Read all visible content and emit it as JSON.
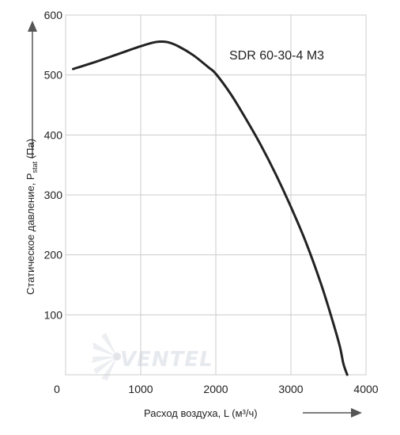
{
  "chart_data": {
    "type": "line",
    "model_label": "SDR 60-30-4 M3",
    "xlabel": "Расход воздуха, L (м³/ч)",
    "ylabel_main": "Статическое давление, P",
    "ylabel_sub": "stat",
    "ylabel_unit": " (Па)",
    "xlim": [
      0,
      4000
    ],
    "ylim": [
      0,
      600
    ],
    "xticks": [
      0,
      1000,
      2000,
      3000,
      4000
    ],
    "yticks": [
      100,
      200,
      300,
      400,
      500,
      600
    ],
    "grid": true,
    "series": [
      {
        "x": [
          100,
          400,
          700,
          1000,
          1200,
          1350,
          1500,
          1700,
          1900,
          2000,
          2200,
          2400,
          2600,
          2800,
          3000,
          3200,
          3400,
          3550,
          3650,
          3700,
          3750
        ],
        "y": [
          510,
          522,
          535,
          548,
          555,
          555,
          548,
          533,
          513,
          502,
          468,
          427,
          383,
          334,
          280,
          221,
          152,
          92,
          48,
          18,
          0
        ]
      }
    ]
  },
  "watermark": {
    "brand_text": "VENTEL"
  },
  "colors": {
    "line": "#222222",
    "grid": "#cccccc",
    "arrow": "#555555"
  }
}
